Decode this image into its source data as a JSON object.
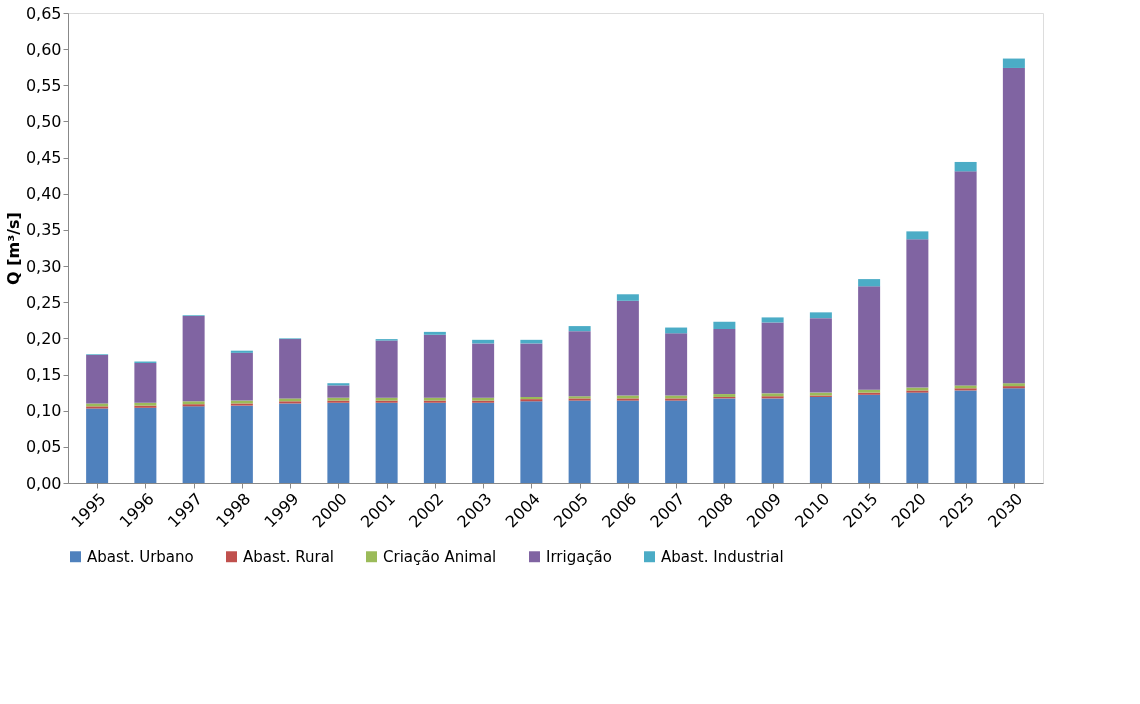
{
  "chart_data": {
    "type": "bar",
    "stacked": true,
    "ylabel": "Q [m³/s]",
    "categories": [
      "1995",
      "1996",
      "1997",
      "1998",
      "1999",
      "2000",
      "2001",
      "2002",
      "2003",
      "2004",
      "2005",
      "2006",
      "2007",
      "2008",
      "2009",
      "2010",
      "2015",
      "2020",
      "2025",
      "2030"
    ],
    "series": [
      {
        "name": "Abast. Urbano",
        "color": "#4f81bd",
        "values": [
          0.103,
          0.104,
          0.106,
          0.107,
          0.11,
          0.111,
          0.111,
          0.111,
          0.111,
          0.113,
          0.114,
          0.114,
          0.114,
          0.117,
          0.117,
          0.119,
          0.122,
          0.125,
          0.128,
          0.131
        ]
      },
      {
        "name": "Abast. Rural",
        "color": "#c0504d",
        "values": [
          0.003,
          0.003,
          0.003,
          0.003,
          0.003,
          0.003,
          0.003,
          0.003,
          0.003,
          0.003,
          0.003,
          0.003,
          0.003,
          0.002,
          0.003,
          0.002,
          0.003,
          0.003,
          0.003,
          0.003
        ]
      },
      {
        "name": "Criação Animal",
        "color": "#9bbb59",
        "values": [
          0.004,
          0.004,
          0.004,
          0.004,
          0.004,
          0.004,
          0.004,
          0.004,
          0.004,
          0.003,
          0.003,
          0.004,
          0.004,
          0.004,
          0.004,
          0.004,
          0.004,
          0.004,
          0.004,
          0.004
        ]
      },
      {
        "name": "Irrigação",
        "color": "#8064a2",
        "values": [
          0.067,
          0.055,
          0.118,
          0.066,
          0.082,
          0.017,
          0.079,
          0.087,
          0.075,
          0.074,
          0.09,
          0.131,
          0.086,
          0.09,
          0.098,
          0.103,
          0.143,
          0.205,
          0.296,
          0.436
        ]
      },
      {
        "name": "Abast. Industrial",
        "color": "#4bacc6",
        "values": [
          0.001,
          0.002,
          0.001,
          0.003,
          0.001,
          0.003,
          0.002,
          0.004,
          0.005,
          0.005,
          0.007,
          0.009,
          0.008,
          0.01,
          0.007,
          0.008,
          0.01,
          0.011,
          0.013,
          0.013
        ]
      }
    ],
    "ylim": [
      0,
      0.65
    ],
    "yticks": [
      {
        "value": 0,
        "label": "0,00"
      },
      {
        "value": 0.05,
        "label": "0,05"
      },
      {
        "value": 0.1,
        "label": "0,10"
      },
      {
        "value": 0.15,
        "label": "0,15"
      },
      {
        "value": 0.2,
        "label": "0,20"
      },
      {
        "value": 0.25,
        "label": "0,25"
      },
      {
        "value": 0.3,
        "label": "0,30"
      },
      {
        "value": 0.35,
        "label": "0,35"
      },
      {
        "value": 0.4,
        "label": "0,40"
      },
      {
        "value": 0.45,
        "label": "0,45"
      },
      {
        "value": 0.5,
        "label": "0,50"
      },
      {
        "value": 0.55,
        "label": "0,55"
      },
      {
        "value": 0.6,
        "label": "0,60"
      },
      {
        "value": 0.65,
        "label": "0,65"
      }
    ],
    "grid": false,
    "legend": "bottom"
  }
}
